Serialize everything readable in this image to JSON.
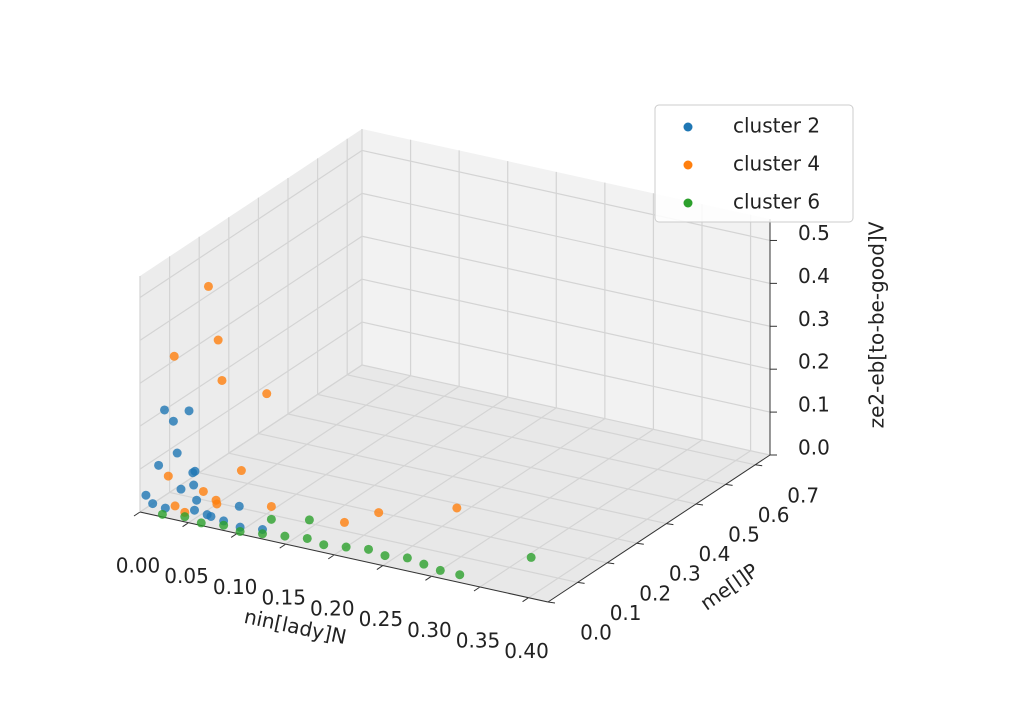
{
  "chart_data": {
    "type": "scatter3d",
    "xlabel": "nin[lady]N",
    "ylabel": "me[l]P",
    "zlabel": "ze2-eb[to-be-good]V",
    "xlim": [
      0,
      0.42
    ],
    "ylim": [
      0,
      0.75
    ],
    "zlim": [
      0,
      0.55
    ],
    "xticks": [
      {
        "value": 0,
        "label": "0.00"
      },
      0.05,
      {
        "value": 0.1,
        "label": "0.10"
      },
      0.15,
      {
        "value": 0.2,
        "label": "0.20"
      },
      0.25,
      {
        "value": 0.3,
        "label": "0.30"
      },
      0.35,
      {
        "value": 0.4,
        "label": "0.40"
      }
    ],
    "yticks": [
      {
        "value": 0,
        "label": "0.0"
      },
      0.1,
      0.2,
      0.3,
      0.4,
      0.5,
      0.6,
      0.7
    ],
    "zticks": [
      {
        "value": 0,
        "label": "0.0"
      },
      0.1,
      0.2,
      0.3,
      0.4,
      0.5
    ],
    "grid": true,
    "legend": "upper right",
    "series": [
      {
        "name": "cluster 2",
        "color": "#1f77b4",
        "x": [
          0.01,
          0.01,
          0.02,
          0.02,
          0.03,
          0.0,
          0.01,
          0.02,
          0.04,
          0.05,
          0.06,
          0.07,
          0.08,
          0.1,
          0.12,
          0.09,
          0.03,
          0.04,
          0.02,
          0.01
        ],
        "y": [
          0.05,
          0.08,
          0.1,
          0.06,
          0.04,
          0.02,
          0.03,
          0.12,
          0.05,
          0.02,
          0.03,
          0.01,
          0.02,
          0.01,
          0.02,
          0.04,
          0.08,
          0.06,
          0.02,
          0.01
        ],
        "z": [
          0.22,
          0.18,
          0.2,
          0.12,
          0.05,
          0.03,
          0.1,
          0.05,
          0.06,
          0.02,
          0.01,
          0.02,
          0.01,
          0.01,
          0.01,
          0.04,
          0.07,
          0.02,
          0.01,
          0.02
        ]
      },
      {
        "name": "cluster 4",
        "color": "#ff7f0e",
        "x": [
          0.04,
          0.02,
          0.05,
          0.06,
          0.1,
          0.02,
          0.05,
          0.08,
          0.12,
          0.18,
          0.2,
          0.25,
          0.03,
          0.07,
          0.06,
          0.04
        ],
        "y": [
          0.1,
          0.05,
          0.1,
          0.08,
          0.1,
          0.03,
          0.05,
          0.08,
          0.05,
          0.1,
          0.15,
          0.25,
          0.02,
          0.03,
          0.06,
          0.02
        ],
        "z": [
          0.5,
          0.35,
          0.38,
          0.3,
          0.28,
          0.08,
          0.05,
          0.1,
          0.05,
          0.02,
          0.03,
          0.02,
          0.02,
          0.04,
          0.03,
          0.01
        ]
      },
      {
        "name": "cluster 6",
        "color": "#2ca02c",
        "x": [
          0.02,
          0.04,
          0.06,
          0.08,
          0.1,
          0.12,
          0.14,
          0.16,
          0.18,
          0.2,
          0.22,
          0.24,
          0.26,
          0.28,
          0.3,
          0.32,
          0.36,
          0.12,
          0.15
        ],
        "y": [
          0.01,
          0.02,
          0.01,
          0.02,
          0.01,
          0.02,
          0.03,
          0.04,
          0.03,
          0.04,
          0.05,
          0.04,
          0.05,
          0.04,
          0.03,
          0.03,
          0.14,
          0.05,
          0.08
        ],
        "z": [
          0.0,
          0.0,
          0.0,
          0.0,
          0.0,
          0.0,
          0.0,
          0.0,
          0.0,
          0.0,
          0.0,
          0.0,
          0.0,
          0.0,
          0.0,
          0.0,
          0.01,
          0.02,
          0.02
        ]
      }
    ]
  }
}
